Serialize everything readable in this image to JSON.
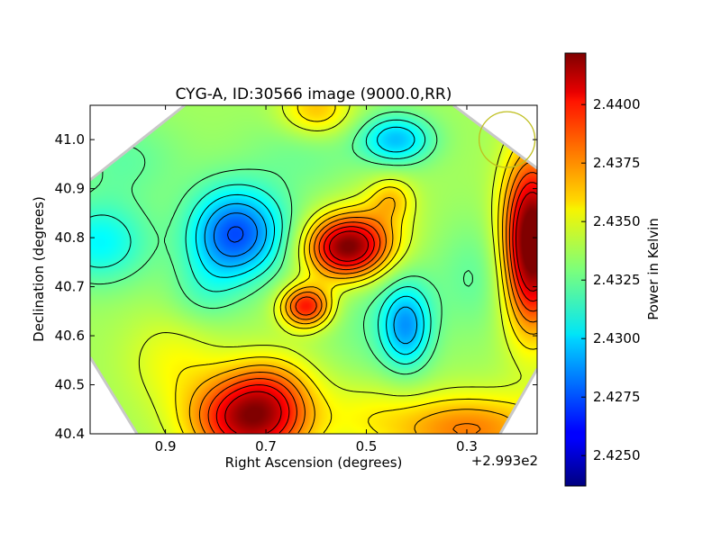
{
  "chart_data": {
    "type": "heatmap",
    "title": "CYG-A, ID:30566 image (9000.0,RR)",
    "xlabel": "Right Ascension (degrees)",
    "ylabel": "Declination (degrees)",
    "x_offset_label": "+2.993e2",
    "colorbar_label": "Power in Kelvin",
    "xlim": [
      1.05,
      0.16
    ],
    "ylim": [
      40.4,
      41.07
    ],
    "x_ticks": [
      "0.9",
      "0.7",
      "0.5",
      "0.3"
    ],
    "x_tick_values": [
      0.9,
      0.7,
      0.5,
      0.3
    ],
    "y_ticks": [
      "40.4",
      "40.5",
      "40.6",
      "40.7",
      "40.8",
      "40.9",
      "41.0"
    ],
    "y_tick_values": [
      40.4,
      40.5,
      40.6,
      40.7,
      40.8,
      40.9,
      41.0
    ],
    "colorbar_range": [
      2.4237,
      2.4422
    ],
    "colorbar_ticks": [
      "2.4250",
      "2.4275",
      "2.4300",
      "2.4325",
      "2.4350",
      "2.4375",
      "2.4400"
    ],
    "colorbar_tick_values": [
      2.425,
      2.4275,
      2.43,
      2.4325,
      2.435,
      2.4375,
      2.44
    ],
    "colormap": "jet",
    "beam_circle": {
      "ra": 0.22,
      "dec": 41.0,
      "color": "#bfbf1f"
    },
    "field": {
      "base": 2.4336,
      "sources": [
        {
          "ra": 0.75,
          "dec": 40.81,
          "sx": 0.065,
          "sy": 0.065,
          "amp": -0.0055
        },
        {
          "ra": 0.8,
          "dec": 40.78,
          "sx": 0.05,
          "sy": 0.08,
          "amp": -0.0012
        },
        {
          "ra": 0.44,
          "dec": 41.0,
          "sx": 0.05,
          "sy": 0.035,
          "amp": -0.004
        },
        {
          "ra": 0.42,
          "dec": 40.62,
          "sx": 0.035,
          "sy": 0.06,
          "amp": -0.0042
        },
        {
          "ra": 0.48,
          "dec": 40.64,
          "sx": 0.07,
          "sy": 0.1,
          "amp": -0.001
        },
        {
          "ra": 1.03,
          "dec": 40.79,
          "sx": 0.07,
          "sy": 0.06,
          "amp": -0.003
        },
        {
          "ra": 0.83,
          "dec": 40.68,
          "sx": 0.05,
          "sy": 0.05,
          "amp": -0.001
        },
        {
          "ra": 0.28,
          "dec": 40.72,
          "sx": 0.06,
          "sy": 0.08,
          "amp": -0.0012
        },
        {
          "ra": 0.98,
          "dec": 40.96,
          "sx": 0.08,
          "sy": 0.06,
          "amp": -0.0012
        },
        {
          "ra": 0.62,
          "dec": 40.98,
          "sx": 0.08,
          "sy": 0.06,
          "amp": -0.001
        },
        {
          "ra": 0.54,
          "dec": 40.78,
          "sx": 0.055,
          "sy": 0.045,
          "amp": 0.0085
        },
        {
          "ra": 0.47,
          "dec": 40.82,
          "sx": 0.05,
          "sy": 0.06,
          "amp": 0.0015
        },
        {
          "ra": 0.45,
          "dec": 40.88,
          "sx": 0.03,
          "sy": 0.03,
          "amp": 0.002
        },
        {
          "ra": 0.62,
          "dec": 40.66,
          "sx": 0.035,
          "sy": 0.03,
          "amp": 0.006
        },
        {
          "ra": 0.73,
          "dec": 40.43,
          "sx": 0.08,
          "sy": 0.06,
          "amp": 0.008
        },
        {
          "ra": 0.69,
          "dec": 40.5,
          "sx": 0.06,
          "sy": 0.05,
          "amp": 0.002
        },
        {
          "ra": 0.3,
          "dec": 40.41,
          "sx": 0.12,
          "sy": 0.05,
          "amp": 0.004
        },
        {
          "ra": 0.17,
          "dec": 40.79,
          "sx": 0.04,
          "sy": 0.12,
          "amp": 0.01
        },
        {
          "ra": 0.6,
          "dec": 41.06,
          "sx": 0.05,
          "sy": 0.04,
          "amp": 0.003
        },
        {
          "ra": 0.88,
          "dec": 40.55,
          "sx": 0.07,
          "sy": 0.07,
          "amp": 0.0015
        },
        {
          "ra": 0.5,
          "dec": 40.45,
          "sx": 0.06,
          "sy": 0.05,
          "amp": 0.001
        }
      ]
    },
    "contour_levels": [
      2.4275,
      2.4285,
      2.4295,
      2.4305,
      2.4315,
      2.4325,
      2.4345,
      2.4355,
      2.4365,
      2.4375,
      2.4385,
      2.4395,
      2.4405
    ]
  }
}
